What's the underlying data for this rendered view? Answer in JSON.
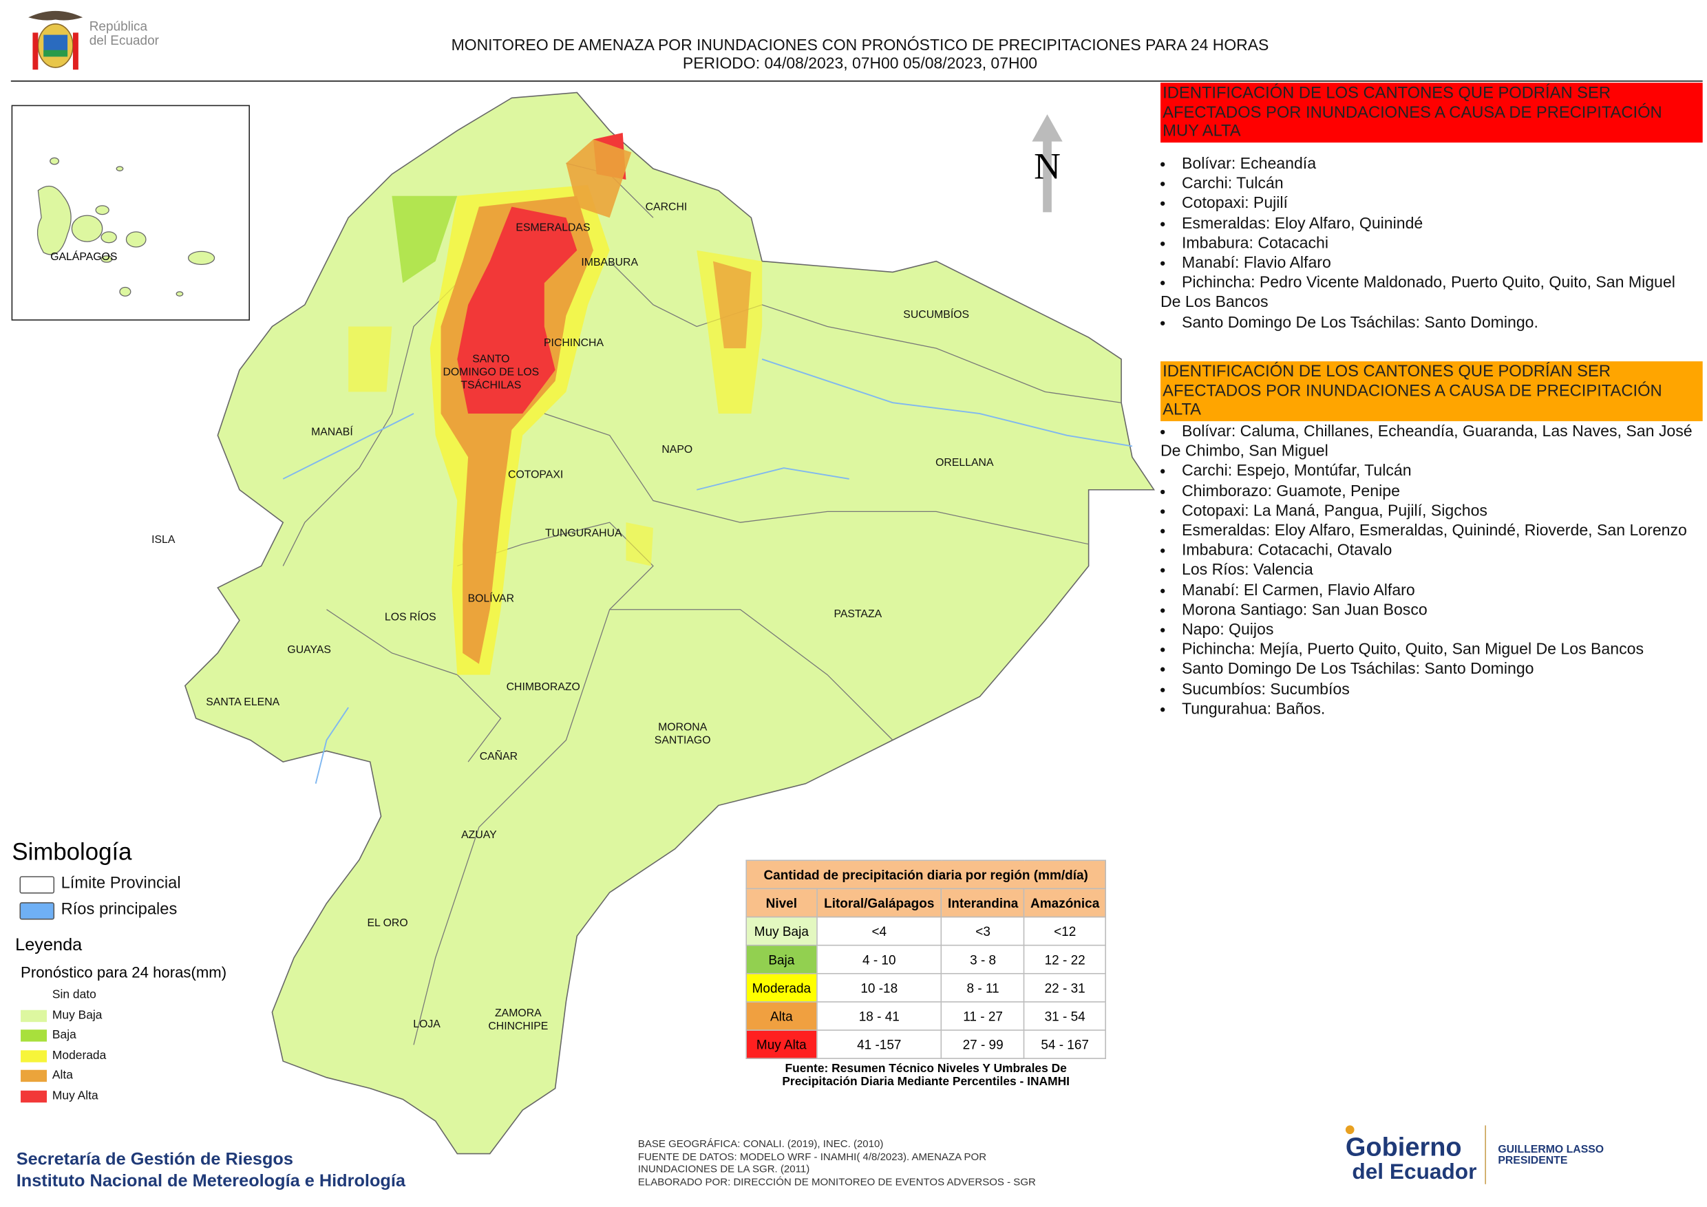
{
  "header": {
    "logo_text": [
      "República",
      "del Ecuador"
    ],
    "title": "MONITOREO DE AMENAZA POR INUNDACIONES  CON PRONÓSTICO DE  PRECIPITACIONES PARA 24 HORAS",
    "period": "PERIODO: 04/08/2023, 07H00 05/08/2023, 07H00"
  },
  "map": {
    "north": "N",
    "inset_label": "GALÁPAGOS",
    "provinces": [
      {
        "lines": [
          "ESMERALDAS"
        ]
      },
      {
        "lines": [
          "CARCHI"
        ]
      },
      {
        "lines": [
          "IMBABURA"
        ]
      },
      {
        "lines": [
          "SUCUMBÍOS"
        ]
      },
      {
        "lines": [
          "PICHINCHA"
        ]
      },
      {
        "lines": [
          "SANTO",
          "DOMINGO DE LOS",
          "TSÁCHILAS"
        ]
      },
      {
        "lines": [
          "MANABÍ"
        ]
      },
      {
        "lines": [
          "NAPO"
        ]
      },
      {
        "lines": [
          "ORELLANA"
        ]
      },
      {
        "lines": [
          "COTOPAXI"
        ]
      },
      {
        "lines": [
          "ISLA"
        ]
      },
      {
        "lines": [
          "TUNGURAHUA"
        ]
      },
      {
        "lines": [
          "BOLÍVAR"
        ]
      },
      {
        "lines": [
          "PASTAZA"
        ]
      },
      {
        "lines": [
          "LOS RÍOS"
        ]
      },
      {
        "lines": [
          "GUAYAS"
        ]
      },
      {
        "lines": [
          "CHIMBORAZO"
        ]
      },
      {
        "lines": [
          "SANTA ELENA"
        ]
      },
      {
        "lines": [
          "MORONA",
          "SANTIAGO"
        ]
      },
      {
        "lines": [
          "CAÑAR"
        ]
      },
      {
        "lines": [
          "AZUAY"
        ]
      },
      {
        "lines": [
          "EL ORO"
        ]
      },
      {
        "lines": [
          "ZAMORA",
          "CHINCHIPE"
        ]
      },
      {
        "lines": [
          "LOJA"
        ]
      }
    ]
  },
  "panels": [
    {
      "heading": "IDENTIFICACIÓN DE LOS CANTONES QUE PODRÍAN SER AFECTADOS POR INUNDACIONES  A CAUSA DE PRECIPITACIÓN MUY ALTA",
      "color": "#ff0000",
      "items": [
        "Bolívar: Echeandía",
        "Carchi: Tulcán",
        "Cotopaxi: Pujilí",
        "Esmeraldas: Eloy Alfaro, Quinindé",
        "Imbabura: Cotacachi",
        "Manabí: Flavio Alfaro",
        "Pichincha: Pedro Vicente Maldonado, Puerto Quito, Quito, San Miguel De Los Bancos",
        "Santo Domingo De Los Tsáchilas: Santo Domingo."
      ]
    },
    {
      "heading": "IDENTIFICACIÓN DE LOS CANTONES QUE  PODRÍAN SER AFECTADOS POR INUNDACIONES  A CAUSA DE PRECIPITACIÓN ALTA",
      "color": "#ffa500",
      "items": [
        "Bolívar: Caluma, Chillanes, Echeandía, Guaranda, Las Naves, San José De Chimbo, San Miguel",
        "Carchi: Espejo, Montúfar, Tulcán",
        "Chimborazo: Guamote, Penipe",
        "Cotopaxi: La Maná, Pangua, Pujilí, Sigchos",
        "Esmeraldas: Eloy Alfaro, Esmeraldas, Quinindé, Rioverde, San Lorenzo",
        "Imbabura: Cotacachi, Otavalo",
        "Los Ríos: Valencia",
        "Manabí: El Carmen, Flavio Alfaro",
        "Morona Santiago: San Juan Bosco",
        "Napo: Quijos",
        "Pichincha: Mejía, Puerto Quito, Quito, San Miguel De Los Bancos",
        "Santo Domingo De Los Tsáchilas: Santo Domingo",
        "Sucumbíos: Sucumbíos",
        "Tungurahua: Baños."
      ]
    }
  ],
  "symbology": {
    "title": "Simbología",
    "items": [
      {
        "label": "Límite Provincial",
        "color": "#ffffff"
      },
      {
        "label": "Ríos principales",
        "color": "#6fb0f5"
      }
    ]
  },
  "legend": {
    "title": "Leyenda",
    "subtitle": "Pronóstico para 24 horas(mm)",
    "items": [
      {
        "label": "Sin dato",
        "color": "#ffffff"
      },
      {
        "label": "Muy Baja",
        "color": "#ddf7a0"
      },
      {
        "label": "Baja",
        "color": "#a8e03c"
      },
      {
        "label": "Moderada",
        "color": "#f7f53a"
      },
      {
        "label": "Alta",
        "color": "#eba43b"
      },
      {
        "label": "Muy Alta",
        "color": "#f23838"
      }
    ]
  },
  "table": {
    "title": "Cantidad de precipitación diaria por región (mm/día)",
    "headers": [
      "Nivel",
      "Litoral/Galápagos",
      "Interandina",
      "Amazónica"
    ],
    "rows": [
      [
        "Muy Baja",
        "<4",
        "<3",
        "<12"
      ],
      [
        "Baja",
        "4 - 10",
        "3 - 8",
        "12 - 22"
      ],
      [
        "Moderada",
        "10 -18",
        "8 - 11",
        "22 - 31"
      ],
      [
        "Alta",
        "18 - 41",
        "11 - 27",
        "31 - 54"
      ],
      [
        "Muy Alta",
        "41 -157",
        "27 - 99",
        "54 - 167"
      ]
    ],
    "row_colors": [
      "#e3f8c0",
      "#92d050",
      "#ffff00",
      "#f0a040",
      "#ff2020"
    ],
    "source": "Fuente: Resumen Técnico Niveles Y Umbrales De Precipitación Diaria Mediante Percentiles - INAMHI"
  },
  "footer": {
    "institutions": [
      "Secretaría de Gestión de Riesgos",
      "Instituto Nacional de Metereología e Hidrología"
    ],
    "credits": [
      "BASE GEOGRÁFICA: CONALI. (2019), INEC. (2010)",
      "FUENTE DE DATOS: MODELO WRF - INAMHI( 4/8/2023).  AMENAZA POR",
      "INUNDACIONES DE LA SGR. (2011)",
      "ELABORADO POR: DIRECCIÓN DE MONITOREO DE EVENTOS ADVERSOS - SGR"
    ],
    "logo": {
      "line1": "Gobierno",
      "line2": "del Ecuador",
      "name": "GUILLERMO LASSO",
      "role": "PRESIDENTE"
    }
  }
}
